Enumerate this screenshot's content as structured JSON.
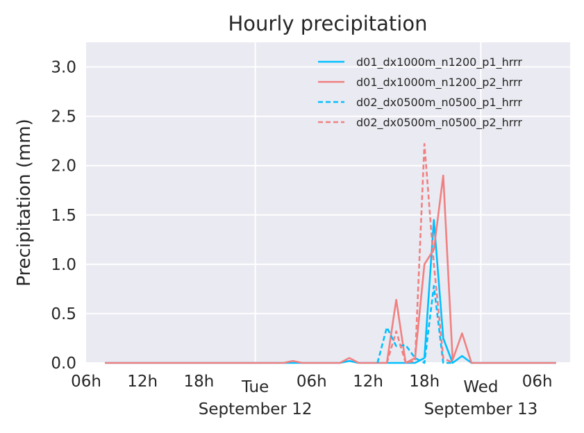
{
  "chart_data": {
    "type": "line",
    "title": "Hourly precipitation",
    "ylabel": "Precipitation (mm)",
    "xlabel": "",
    "ylim": [
      0,
      3.25
    ],
    "xlim": [
      "2023-09-11T06:00",
      "2023-09-13T09:30"
    ],
    "yticks": [
      "0.0",
      "0.5",
      "1.0",
      "1.5",
      "2.0",
      "2.5",
      "3.0"
    ],
    "xticks": [
      {
        "t": "2023-09-11T06:00",
        "label": "06h"
      },
      {
        "t": "2023-09-11T12:00",
        "label": "12h"
      },
      {
        "t": "2023-09-11T18:00",
        "label": "18h"
      },
      {
        "t": "2023-09-12T06:00",
        "label": "06h"
      },
      {
        "t": "2023-09-12T12:00",
        "label": "12h"
      },
      {
        "t": "2023-09-12T18:00",
        "label": "18h"
      },
      {
        "t": "2023-09-13T06:00",
        "label": "06h"
      }
    ],
    "day_labels": [
      {
        "t": "2023-09-12T00:00",
        "label": "Tue"
      },
      {
        "t": "2023-09-13T00:00",
        "label": "Wed"
      }
    ],
    "date_labels": [
      {
        "t": "2023-09-12T00:00",
        "label": "September 12"
      },
      {
        "t": "2023-09-13T00:00",
        "label": "September 13"
      }
    ],
    "grid": true,
    "legend_position": "top-right",
    "series": [
      {
        "name": "d01_dx1000m_n1200_p1_hrrr",
        "color": "#00bfff",
        "dash": "solid",
        "points": [
          [
            "2023-09-11T08:00",
            0
          ],
          [
            "2023-09-12T09:00",
            0
          ],
          [
            "2023-09-12T10:00",
            0.02
          ],
          [
            "2023-09-12T11:00",
            0
          ],
          [
            "2023-09-12T15:00",
            0
          ],
          [
            "2023-09-12T16:00",
            0
          ],
          [
            "2023-09-12T17:00",
            0
          ],
          [
            "2023-09-12T18:00",
            0.05
          ],
          [
            "2023-09-12T19:00",
            1.45
          ],
          [
            "2023-09-12T20:00",
            0.25
          ],
          [
            "2023-09-12T21:00",
            0
          ],
          [
            "2023-09-12T22:00",
            0.07
          ],
          [
            "2023-09-12T23:00",
            0
          ],
          [
            "2023-09-13T08:00",
            0
          ]
        ]
      },
      {
        "name": "d01_dx1000m_n1200_p2_hrrr",
        "color": "#f08080",
        "dash": "solid",
        "points": [
          [
            "2023-09-11T08:00",
            0
          ],
          [
            "2023-09-12T03:00",
            0
          ],
          [
            "2023-09-12T04:00",
            0.02
          ],
          [
            "2023-09-12T05:00",
            0
          ],
          [
            "2023-09-12T08:00",
            0
          ],
          [
            "2023-09-12T09:00",
            0
          ],
          [
            "2023-09-12T10:00",
            0.05
          ],
          [
            "2023-09-12T11:00",
            0
          ],
          [
            "2023-09-12T14:00",
            0
          ],
          [
            "2023-09-12T15:00",
            0.64
          ],
          [
            "2023-09-12T16:00",
            0
          ],
          [
            "2023-09-12T17:00",
            0.05
          ],
          [
            "2023-09-12T18:00",
            1.0
          ],
          [
            "2023-09-12T19:00",
            1.15
          ],
          [
            "2023-09-12T20:00",
            1.9
          ],
          [
            "2023-09-12T21:00",
            0.03
          ],
          [
            "2023-09-12T22:00",
            0.3
          ],
          [
            "2023-09-12T23:00",
            0
          ],
          [
            "2023-09-13T08:00",
            0
          ]
        ]
      },
      {
        "name": "d02_dx0500m_n0500_p1_hrrr",
        "color": "#00bfff",
        "dash": "dashed",
        "points": [
          [
            "2023-09-12T13:00",
            0
          ],
          [
            "2023-09-12T14:00",
            0.36
          ],
          [
            "2023-09-12T15:00",
            0.17
          ],
          [
            "2023-09-12T16:00",
            0.18
          ],
          [
            "2023-09-12T17:00",
            0.05
          ],
          [
            "2023-09-12T18:00",
            0
          ],
          [
            "2023-09-12T19:00",
            0.78
          ],
          [
            "2023-09-12T20:00",
            0
          ],
          [
            "2023-09-12T21:00",
            0
          ]
        ]
      },
      {
        "name": "d02_dx0500m_n0500_p2_hrrr",
        "color": "#f08080",
        "dash": "dashed",
        "points": [
          [
            "2023-09-12T14:00",
            0
          ],
          [
            "2023-09-12T15:00",
            0.32
          ],
          [
            "2023-09-12T16:00",
            0
          ],
          [
            "2023-09-12T17:00",
            0.02
          ],
          [
            "2023-09-12T18:00",
            2.22
          ],
          [
            "2023-09-12T19:00",
            1.0
          ],
          [
            "2023-09-12T20:00",
            0.05
          ],
          [
            "2023-09-12T21:00",
            0
          ]
        ]
      }
    ]
  }
}
